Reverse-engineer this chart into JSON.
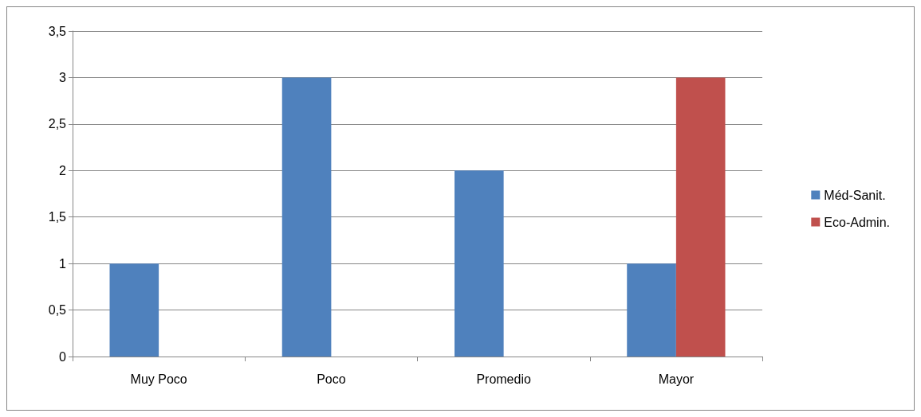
{
  "chart_data": {
    "type": "bar",
    "categories": [
      "Muy Poco",
      "Poco",
      "Promedio",
      "Mayor"
    ],
    "series": [
      {
        "name": "Méd-Sanit.",
        "color": "#4f81bd",
        "values": [
          1,
          3,
          2,
          1
        ]
      },
      {
        "name": "Eco-Admin.",
        "color": "#c0504d",
        "values": [
          0,
          0,
          0,
          3
        ]
      }
    ],
    "ylim": [
      0,
      3.5
    ],
    "yticks": [
      {
        "value": 0,
        "label": "0"
      },
      {
        "value": 0.5,
        "label": "0,5"
      },
      {
        "value": 1,
        "label": "1"
      },
      {
        "value": 1.5,
        "label": "1,5"
      },
      {
        "value": 2,
        "label": "2"
      },
      {
        "value": 2.5,
        "label": "2,5"
      },
      {
        "value": 3,
        "label": "3"
      },
      {
        "value": 3.5,
        "label": "3,5"
      }
    ],
    "grid": "y",
    "legend": "right"
  }
}
